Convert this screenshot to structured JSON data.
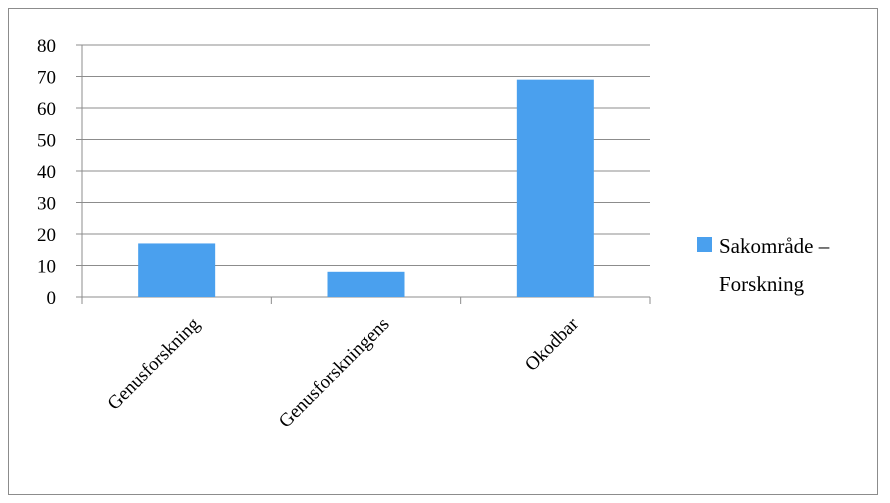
{
  "chart_data": {
    "type": "bar",
    "categories": [
      "Genusforskning",
      "Genusforskningens",
      "Okodbar"
    ],
    "series": [
      {
        "name": "Sakområde – Forskning",
        "values": [
          17,
          8,
          69
        ]
      }
    ],
    "ylim": [
      0,
      80
    ],
    "yticks": [
      0,
      10,
      20,
      30,
      40,
      50,
      60,
      70,
      80
    ],
    "ytick_labels": [
      "0",
      "10",
      "20",
      "30",
      "40",
      "50",
      "60",
      "70",
      "80"
    ],
    "grid": true,
    "legend": {
      "position": "right",
      "lines": [
        "Sakområde –",
        "Forskning"
      ]
    },
    "colors": {
      "bar": "#4aa0ee",
      "grid": "#8c8c8c",
      "axis": "#8c8c8c"
    }
  }
}
